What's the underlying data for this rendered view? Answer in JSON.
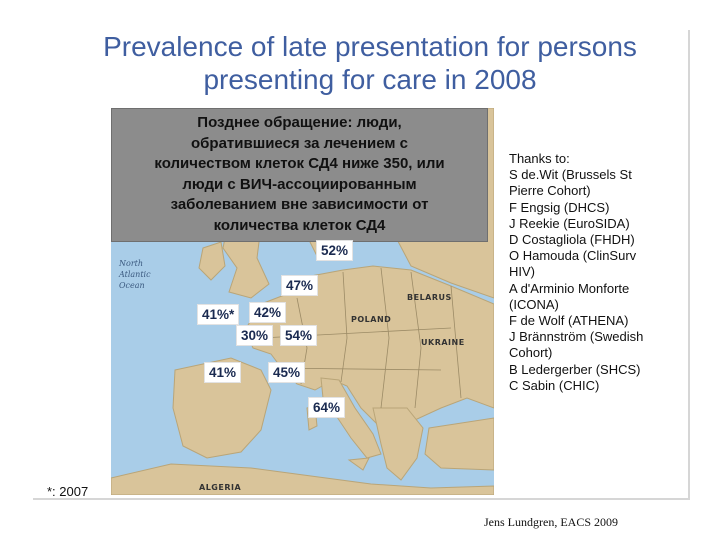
{
  "slide": {
    "title_line1": "Prevalence of late presentation for persons",
    "title_line2": "presenting for care in 2008"
  },
  "definition_box": {
    "lines": [
      "Позднее обращение: люди,",
      "обратившиеся за лечением с",
      "количеством клеток СД4 ниже 350, или",
      "люди с ВИЧ-ассоциированным",
      "заболеванием вне зависимости от",
      "количества клеток СД4"
    ]
  },
  "map": {
    "percentages": [
      "52%",
      "47%",
      "41%*",
      "42%",
      "30%",
      "54%",
      "41%",
      "45%",
      "64%"
    ],
    "country_labels": [
      "ALGERIA",
      "POLAND",
      "BELARUS",
      "UKRAINE"
    ],
    "ocean_label": [
      "North",
      "Atlantic",
      "Ocean"
    ],
    "colors": {
      "sea": "#a9cde8",
      "land": "#d9c49a",
      "land_dark": "#b9a578"
    }
  },
  "thanks": {
    "lines": [
      "Thanks to:",
      "S de.Wit (Brussels St",
      "Pierre Cohort)",
      "F Engsig (DHCS)",
      "J Reekie (EuroSIDA)",
      "D Costagliola (FHDH)",
      "O Hamouda (ClinSurv",
      "HIV)",
      "A d'Arminio Monforte",
      "(ICONA)",
      "F de Wolf (ATHENA)",
      "J Brännström (Swedish",
      "Cohort)",
      "B Ledergerber (SHCS)",
      "C Sabin (CHIC)"
    ]
  },
  "footnote": "*: 2007",
  "credit": "Jens Lundgren, EACS 2009"
}
